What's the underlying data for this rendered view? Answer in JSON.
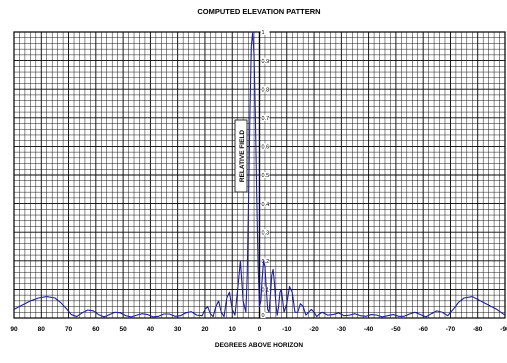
{
  "chart_data": {
    "type": "line",
    "title": "COMPUTED ELEVATION PATTERN",
    "xlabel": "DEGREES ABOVE HORIZON",
    "ylabel": "RELATIVE FIELD",
    "xlim": [
      90,
      -90
    ],
    "ylim": [
      0,
      1
    ],
    "x_ticks": [
      "90",
      "80",
      "70",
      "60",
      "50",
      "40",
      "30",
      "20",
      "10",
      "0",
      "-10",
      "-20",
      "-30",
      "-40",
      "-50",
      "-60",
      "-70",
      "-80",
      "-90"
    ],
    "y_ticks": [
      "0.1",
      "0.2",
      "0.3",
      "0.4",
      "0.5",
      "0.6",
      "0.7",
      "0.8",
      "0.9",
      "1"
    ],
    "y_tick_zero": "0",
    "grid": true,
    "line_color": "#1f1f9e",
    "series": [
      {
        "x": [
          90,
          87,
          84,
          81,
          78,
          75,
          73,
          71,
          69,
          67,
          65,
          63,
          61,
          59,
          57,
          55,
          53,
          51,
          49,
          47,
          45,
          43,
          41,
          39,
          37,
          35,
          33,
          31,
          29,
          27,
          25,
          23,
          21,
          20,
          19,
          18,
          17,
          16,
          15,
          14,
          13,
          12,
          11,
          10,
          9,
          8,
          7,
          6,
          5,
          4.5,
          4,
          3.5,
          3,
          2.5,
          2,
          1.5,
          1,
          0.5,
          0,
          -0.5,
          -1,
          -1.5,
          -2,
          -2.5,
          -3,
          -3.5,
          -4,
          -4.5,
          -5,
          -5.5,
          -6,
          -6.5,
          -7,
          -7.5,
          -8,
          -8.5,
          -9,
          -10,
          -11,
          -12,
          -13,
          -14,
          -15,
          -16,
          -17,
          -18,
          -19,
          -20,
          -21,
          -22,
          -23,
          -25,
          -27,
          -29,
          -31,
          -33,
          -35,
          -37,
          -39,
          -41,
          -43,
          -45,
          -47,
          -49,
          -51,
          -53,
          -55,
          -57,
          -59,
          -61,
          -63,
          -65,
          -67,
          -69,
          -71,
          -73,
          -75,
          -78,
          -81,
          -84,
          -87,
          -90
        ],
        "values": [
          0.03,
          0.045,
          0.06,
          0.07,
          0.075,
          0.07,
          0.055,
          0.035,
          0.012,
          0.005,
          0.018,
          0.028,
          0.025,
          0.012,
          0.004,
          0.012,
          0.02,
          0.018,
          0.008,
          0.004,
          0.01,
          0.015,
          0.012,
          0.004,
          0.006,
          0.014,
          0.014,
          0.006,
          0.008,
          0.018,
          0.022,
          0.01,
          0.008,
          0.03,
          0.04,
          0.015,
          0.005,
          0.04,
          0.06,
          0.02,
          0.005,
          0.07,
          0.09,
          0.03,
          0.01,
          0.1,
          0.2,
          0.06,
          0.02,
          0.15,
          0.42,
          0.72,
          0.95,
          1.0,
          0.92,
          0.7,
          0.42,
          0.18,
          0.04,
          0.06,
          0.14,
          0.2,
          0.18,
          0.1,
          0.03,
          0.02,
          0.08,
          0.15,
          0.17,
          0.12,
          0.05,
          0.01,
          0.04,
          0.09,
          0.1,
          0.06,
          0.02,
          0.05,
          0.11,
          0.09,
          0.02,
          0.02,
          0.05,
          0.04,
          0.01,
          0.02,
          0.03,
          0.02,
          0.005,
          0.015,
          0.02,
          0.01,
          0.012,
          0.018,
          0.008,
          0.01,
          0.015,
          0.008,
          0.006,
          0.012,
          0.01,
          0.004,
          0.008,
          0.012,
          0.006,
          0.006,
          0.014,
          0.02,
          0.012,
          0.004,
          0.015,
          0.025,
          0.02,
          0.008,
          0.03,
          0.055,
          0.07,
          0.075,
          0.06,
          0.045,
          0.03,
          0.01
        ]
      }
    ]
  }
}
